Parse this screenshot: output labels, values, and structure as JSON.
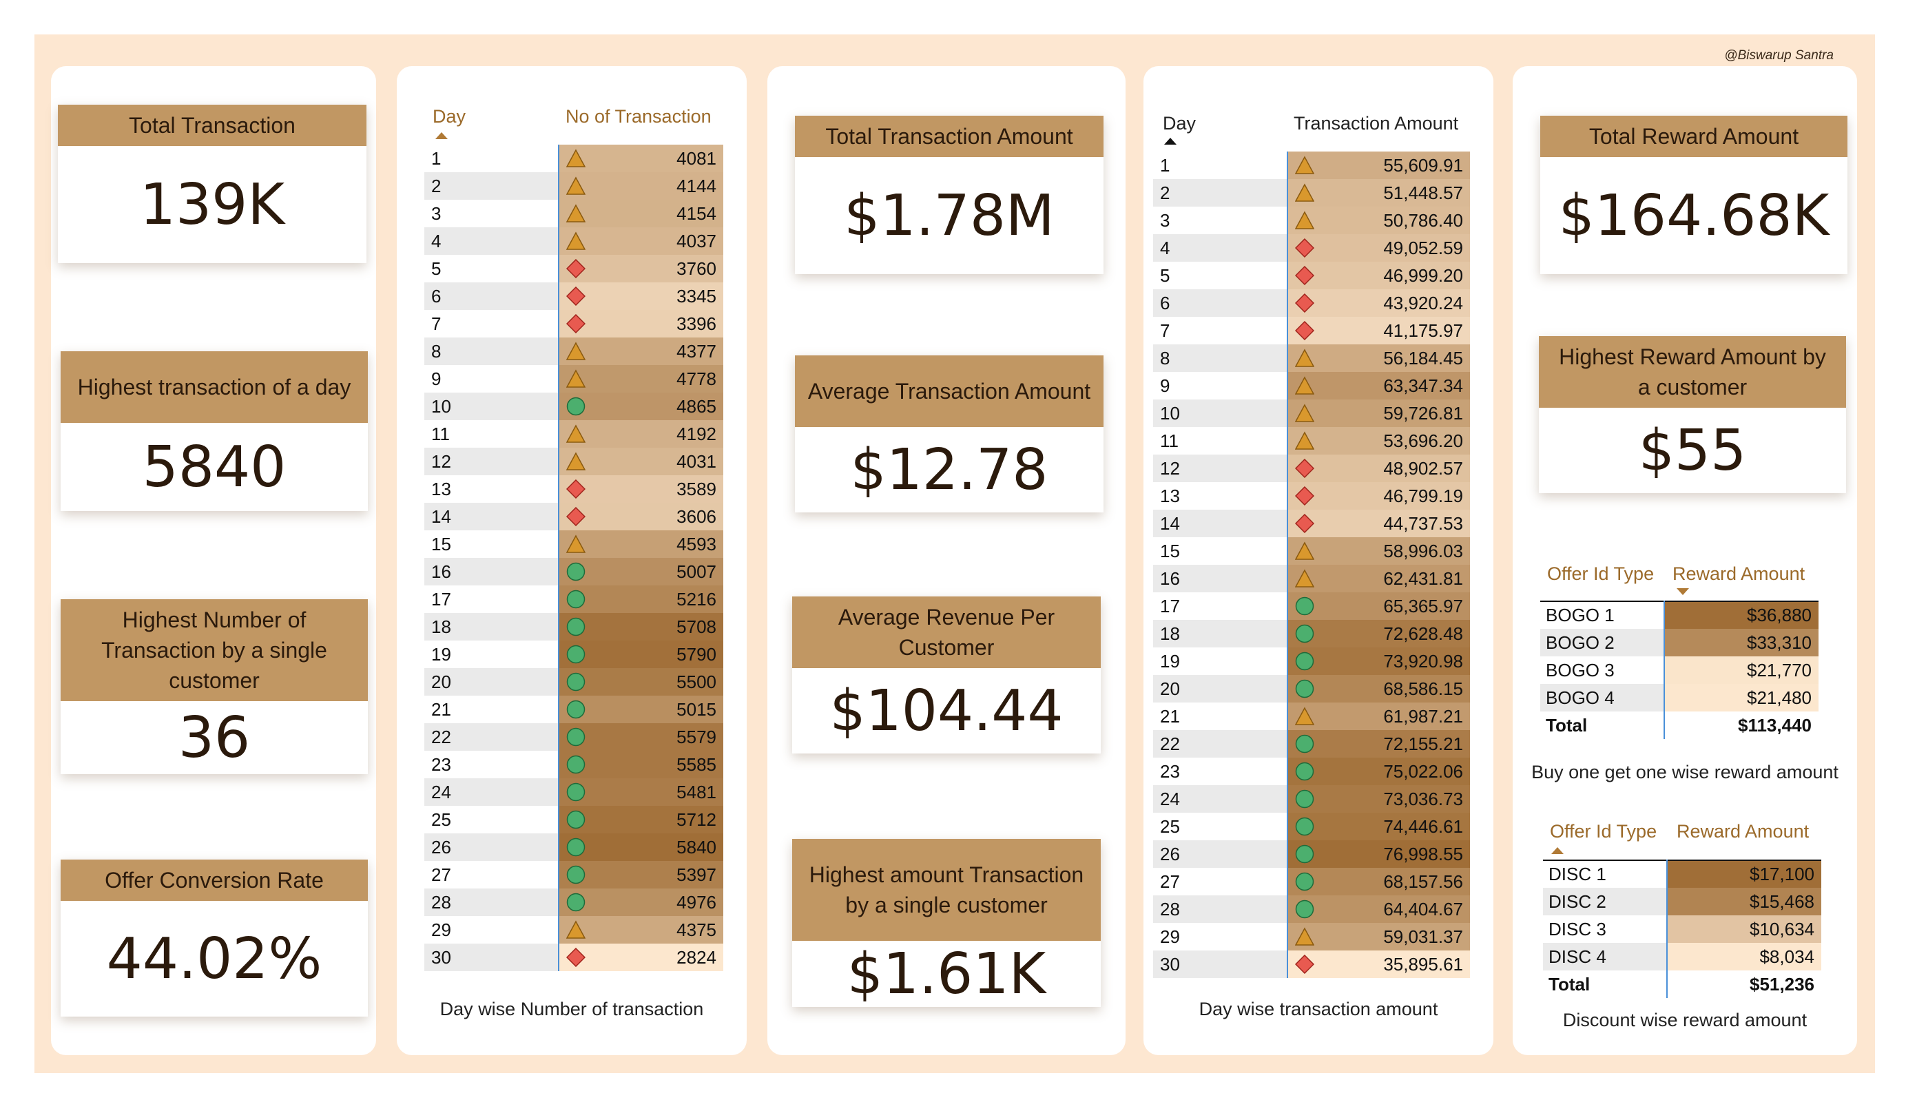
{
  "credit": "@Biswarup Santra",
  "colors": {
    "accent": "#c19763",
    "background": "#fde7d1",
    "triangle": "#d9982d",
    "diamond": "#e85a50",
    "circle": "#4caf6e"
  },
  "kpis": {
    "total_transaction": {
      "label": "Total Transaction",
      "value": "139K"
    },
    "highest_transaction_day": {
      "label": "Highest transaction of a day",
      "value": "5840"
    },
    "highest_txn_single_customer": {
      "label": "Highest Number of Transaction by a single customer",
      "value": "36"
    },
    "offer_conversion_rate": {
      "label": "Offer Conversion Rate",
      "value": "44.02%"
    },
    "total_transaction_amount": {
      "label": "Total Transaction Amount",
      "value": "$1.78M"
    },
    "average_transaction_amount": {
      "label": "Average Transaction Amount",
      "value": "$12.78"
    },
    "average_revenue_per_customer": {
      "label": "Average Revenue Per Customer",
      "value": "$104.44"
    },
    "highest_amount_single_customer": {
      "label": "Highest amount Transaction by a single customer",
      "value": "$1.61K"
    },
    "total_reward_amount": {
      "label": "Total Reward Amount",
      "value": "$164.68K"
    },
    "highest_reward_customer": {
      "label": "Highest Reward Amount by a customer",
      "value": "$55"
    }
  },
  "day_count_table": {
    "header_day": "Day",
    "header_value": "No of Transaction",
    "caption": "Day wise Number of transaction",
    "rows": [
      {
        "day": "1",
        "value": "4081",
        "icon": "triangle-icon"
      },
      {
        "day": "2",
        "value": "4144",
        "icon": "triangle-icon"
      },
      {
        "day": "3",
        "value": "4154",
        "icon": "triangle-icon"
      },
      {
        "day": "4",
        "value": "4037",
        "icon": "triangle-icon"
      },
      {
        "day": "5",
        "value": "3760",
        "icon": "diamond-icon"
      },
      {
        "day": "6",
        "value": "3345",
        "icon": "diamond-icon"
      },
      {
        "day": "7",
        "value": "3396",
        "icon": "diamond-icon"
      },
      {
        "day": "8",
        "value": "4377",
        "icon": "triangle-icon"
      },
      {
        "day": "9",
        "value": "4778",
        "icon": "triangle-icon"
      },
      {
        "day": "10",
        "value": "4865",
        "icon": "circle-icon"
      },
      {
        "day": "11",
        "value": "4192",
        "icon": "triangle-icon"
      },
      {
        "day": "12",
        "value": "4031",
        "icon": "triangle-icon"
      },
      {
        "day": "13",
        "value": "3589",
        "icon": "diamond-icon"
      },
      {
        "day": "14",
        "value": "3606",
        "icon": "diamond-icon"
      },
      {
        "day": "15",
        "value": "4593",
        "icon": "triangle-icon"
      },
      {
        "day": "16",
        "value": "5007",
        "icon": "circle-icon"
      },
      {
        "day": "17",
        "value": "5216",
        "icon": "circle-icon"
      },
      {
        "day": "18",
        "value": "5708",
        "icon": "circle-icon"
      },
      {
        "day": "19",
        "value": "5790",
        "icon": "circle-icon"
      },
      {
        "day": "20",
        "value": "5500",
        "icon": "circle-icon"
      },
      {
        "day": "21",
        "value": "5015",
        "icon": "circle-icon"
      },
      {
        "day": "22",
        "value": "5579",
        "icon": "circle-icon"
      },
      {
        "day": "23",
        "value": "5585",
        "icon": "circle-icon"
      },
      {
        "day": "24",
        "value": "5481",
        "icon": "circle-icon"
      },
      {
        "day": "25",
        "value": "5712",
        "icon": "circle-icon"
      },
      {
        "day": "26",
        "value": "5840",
        "icon": "circle-icon"
      },
      {
        "day": "27",
        "value": "5397",
        "icon": "circle-icon"
      },
      {
        "day": "28",
        "value": "4976",
        "icon": "circle-icon"
      },
      {
        "day": "29",
        "value": "4375",
        "icon": "triangle-icon"
      },
      {
        "day": "30",
        "value": "2824",
        "icon": "diamond-icon"
      }
    ]
  },
  "day_amount_table": {
    "header_day": "Day",
    "header_value": "Transaction Amount",
    "caption": "Day wise transaction amount",
    "rows": [
      {
        "day": "1",
        "value": "55,609.91",
        "icon": "triangle-icon"
      },
      {
        "day": "2",
        "value": "51,448.57",
        "icon": "triangle-icon"
      },
      {
        "day": "3",
        "value": "50,786.40",
        "icon": "triangle-icon"
      },
      {
        "day": "4",
        "value": "49,052.59",
        "icon": "diamond-icon"
      },
      {
        "day": "5",
        "value": "46,999.20",
        "icon": "diamond-icon"
      },
      {
        "day": "6",
        "value": "43,920.24",
        "icon": "diamond-icon"
      },
      {
        "day": "7",
        "value": "41,175.97",
        "icon": "diamond-icon"
      },
      {
        "day": "8",
        "value": "56,184.45",
        "icon": "triangle-icon"
      },
      {
        "day": "9",
        "value": "63,347.34",
        "icon": "triangle-icon"
      },
      {
        "day": "10",
        "value": "59,726.81",
        "icon": "triangle-icon"
      },
      {
        "day": "11",
        "value": "53,696.20",
        "icon": "triangle-icon"
      },
      {
        "day": "12",
        "value": "48,902.57",
        "icon": "diamond-icon"
      },
      {
        "day": "13",
        "value": "46,799.19",
        "icon": "diamond-icon"
      },
      {
        "day": "14",
        "value": "44,737.53",
        "icon": "diamond-icon"
      },
      {
        "day": "15",
        "value": "58,996.03",
        "icon": "triangle-icon"
      },
      {
        "day": "16",
        "value": "62,431.81",
        "icon": "triangle-icon"
      },
      {
        "day": "17",
        "value": "65,365.97",
        "icon": "circle-icon"
      },
      {
        "day": "18",
        "value": "72,628.48",
        "icon": "circle-icon"
      },
      {
        "day": "19",
        "value": "73,920.98",
        "icon": "circle-icon"
      },
      {
        "day": "20",
        "value": "68,586.15",
        "icon": "circle-icon"
      },
      {
        "day": "21",
        "value": "61,987.21",
        "icon": "triangle-icon"
      },
      {
        "day": "22",
        "value": "72,155.21",
        "icon": "circle-icon"
      },
      {
        "day": "23",
        "value": "75,022.06",
        "icon": "circle-icon"
      },
      {
        "day": "24",
        "value": "73,036.73",
        "icon": "circle-icon"
      },
      {
        "day": "25",
        "value": "74,446.61",
        "icon": "circle-icon"
      },
      {
        "day": "26",
        "value": "76,998.55",
        "icon": "circle-icon"
      },
      {
        "day": "27",
        "value": "68,157.56",
        "icon": "circle-icon"
      },
      {
        "day": "28",
        "value": "64,404.67",
        "icon": "circle-icon"
      },
      {
        "day": "29",
        "value": "59,031.37",
        "icon": "triangle-icon"
      },
      {
        "day": "30",
        "value": "35,895.61",
        "icon": "diamond-icon"
      }
    ]
  },
  "bogo_table": {
    "header_key": "Offer Id Type",
    "header_value": "Reward Amount",
    "caption": "Buy one get one wise reward amount",
    "rows": [
      {
        "key": "BOGO 1",
        "value": "$36,880"
      },
      {
        "key": "BOGO 2",
        "value": "$33,310"
      },
      {
        "key": "BOGO 3",
        "value": "$21,770"
      },
      {
        "key": "BOGO 4",
        "value": "$21,480"
      }
    ],
    "total_label": "Total",
    "total_value": "$113,440"
  },
  "disc_table": {
    "header_key": "Offer Id Type",
    "header_value": "Reward Amount",
    "caption": "Discount wise reward amount",
    "rows": [
      {
        "key": "DISC 1",
        "value": "$17,100"
      },
      {
        "key": "DISC 2",
        "value": "$15,468"
      },
      {
        "key": "DISC 3",
        "value": "$10,634"
      },
      {
        "key": "DISC 4",
        "value": "$8,034"
      }
    ],
    "total_label": "Total",
    "total_value": "$51,236"
  }
}
